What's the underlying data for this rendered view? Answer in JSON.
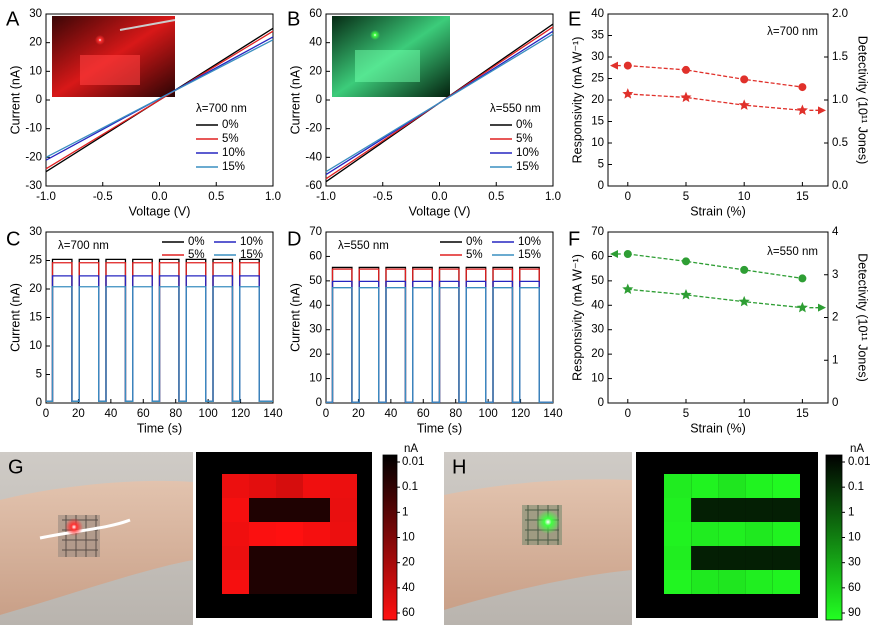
{
  "chart_data": [
    {
      "type": "line",
      "label": "A",
      "annotation": "λ=700 nm",
      "xlabel": "Voltage (V)",
      "ylabel": "Current (nA)",
      "x": [
        -1,
        1
      ],
      "xlim": [
        -1,
        1
      ],
      "xticks": [
        {
          "value": -1,
          "label": "-1.0"
        },
        -0.5,
        {
          "value": 0,
          "label": "0.0"
        },
        0.5,
        {
          "value": 1,
          "label": "1.0"
        }
      ],
      "ylim": [
        -30,
        30
      ],
      "yticks": [
        -30,
        -20,
        -10,
        0,
        10,
        20,
        30
      ],
      "legend": true,
      "series": [
        {
          "name": "0%",
          "color": "#000000",
          "values": [
            -25,
            25
          ]
        },
        {
          "name": "5%",
          "color": "#e02020",
          "values": [
            -24,
            24
          ]
        },
        {
          "name": "10%",
          "color": "#2626c0",
          "values": [
            -21,
            22
          ]
        },
        {
          "name": "15%",
          "color": "#3a8fc0",
          "values": [
            -20,
            21
          ]
        }
      ]
    },
    {
      "type": "line",
      "label": "B",
      "annotation": "λ=550 nm",
      "xlabel": "Voltage (V)",
      "ylabel": "Current (nA)",
      "x": [
        -1,
        1
      ],
      "xlim": [
        -1,
        1
      ],
      "xticks": [
        {
          "value": -1,
          "label": "-1.0"
        },
        -0.5,
        {
          "value": 0,
          "label": "0.0"
        },
        0.5,
        {
          "value": 1,
          "label": "1.0"
        }
      ],
      "ylim": [
        -60,
        60
      ],
      "yticks": [
        -60,
        -40,
        -20,
        0,
        20,
        40,
        60
      ],
      "legend": true,
      "series": [
        {
          "name": "0%",
          "color": "#000000",
          "values": [
            -57,
            53
          ]
        },
        {
          "name": "5%",
          "color": "#e02020",
          "values": [
            -55,
            51
          ]
        },
        {
          "name": "10%",
          "color": "#2626c0",
          "values": [
            -52,
            48
          ]
        },
        {
          "name": "15%",
          "color": "#3a8fc0",
          "values": [
            -50,
            46
          ]
        }
      ]
    },
    {
      "type": "line",
      "label": "C",
      "annotation": "λ=700 nm",
      "xlabel": "Time (s)",
      "ylabel": "Current (nA)",
      "x": [
        0,
        4,
        4,
        16,
        16,
        20.5,
        20.5,
        32.5,
        32.5,
        37,
        37,
        49,
        49,
        53.5,
        53.5,
        65.5,
        65.5,
        70,
        70,
        82,
        82,
        86.5,
        86.5,
        98.5,
        98.5,
        103,
        103,
        115,
        115,
        119.5,
        119.5,
        131.5,
        131.5,
        140
      ],
      "xlim": [
        0,
        140
      ],
      "xticks": [
        0,
        20,
        40,
        60,
        80,
        100,
        120,
        140
      ],
      "ylim": [
        0,
        30
      ],
      "yticks": [
        0,
        5,
        10,
        15,
        20,
        25,
        30
      ],
      "legend": true,
      "series": [
        {
          "name": "0%",
          "color": "#000000",
          "values": [
            0.3,
            0.3,
            25.2,
            25.2,
            0.3,
            0.3,
            25.2,
            25.2,
            0.3,
            0.3,
            25.2,
            25.2,
            0.3,
            0.3,
            25.2,
            25.2,
            0.3,
            0.3,
            25.2,
            25.2,
            0.3,
            0.3,
            25.2,
            25.2,
            0.3,
            0.3,
            25.2,
            25.2,
            0.3,
            0.3,
            25.2,
            25.2,
            0.3,
            0.3
          ]
        },
        {
          "name": "5%",
          "color": "#e02020",
          "values": [
            0.3,
            0.3,
            24.6,
            24.6,
            0.3,
            0.3,
            24.6,
            24.6,
            0.3,
            0.3,
            24.6,
            24.6,
            0.3,
            0.3,
            24.6,
            24.6,
            0.3,
            0.3,
            24.6,
            24.6,
            0.3,
            0.3,
            24.6,
            24.6,
            0.3,
            0.3,
            24.6,
            24.6,
            0.3,
            0.3,
            24.6,
            24.6,
            0.3,
            0.3
          ]
        },
        {
          "name": "10%",
          "color": "#2626c0",
          "values": [
            0.3,
            0.3,
            22.3,
            22.3,
            0.3,
            0.3,
            22.3,
            22.3,
            0.3,
            0.3,
            22.3,
            22.3,
            0.3,
            0.3,
            22.3,
            22.3,
            0.3,
            0.3,
            22.3,
            22.3,
            0.3,
            0.3,
            22.3,
            22.3,
            0.3,
            0.3,
            22.3,
            22.3,
            0.3,
            0.3,
            22.3,
            22.3,
            0.3,
            0.3
          ]
        },
        {
          "name": "15%",
          "color": "#3a8fc0",
          "values": [
            0.3,
            0.3,
            20.4,
            20.4,
            0.3,
            0.3,
            20.4,
            20.4,
            0.3,
            0.3,
            20.4,
            20.4,
            0.3,
            0.3,
            20.4,
            20.4,
            0.3,
            0.3,
            20.4,
            20.4,
            0.3,
            0.3,
            20.4,
            20.4,
            0.3,
            0.3,
            20.4,
            20.4,
            0.3,
            0.3,
            20.4,
            20.4,
            0.3,
            0.3
          ]
        }
      ]
    },
    {
      "type": "line",
      "label": "D",
      "annotation": "λ=550 nm",
      "xlabel": "Time (s)",
      "ylabel": "Current (nA)",
      "x": [
        0,
        4,
        4,
        16,
        16,
        20.5,
        20.5,
        32.5,
        32.5,
        37,
        37,
        49,
        49,
        53.5,
        53.5,
        65.5,
        65.5,
        70,
        70,
        82,
        82,
        86.5,
        86.5,
        98.5,
        98.5,
        103,
        103,
        115,
        115,
        119.5,
        119.5,
        131.5,
        131.5,
        140
      ],
      "xlim": [
        0,
        140
      ],
      "xticks": [
        0,
        20,
        40,
        60,
        80,
        100,
        120,
        140
      ],
      "ylim": [
        0,
        70
      ],
      "yticks": [
        0,
        10,
        20,
        30,
        40,
        50,
        60,
        70
      ],
      "legend": true,
      "series": [
        {
          "name": "0%",
          "color": "#000000",
          "values": [
            0.3,
            0.3,
            55.5,
            55.5,
            0.3,
            0.3,
            55.5,
            55.5,
            0.3,
            0.3,
            55.5,
            55.5,
            0.3,
            0.3,
            55.5,
            55.5,
            0.3,
            0.3,
            55.5,
            55.5,
            0.3,
            0.3,
            55.5,
            55.5,
            0.3,
            0.3,
            55.5,
            55.5,
            0.3,
            0.3,
            55.5,
            55.5,
            0.3,
            0.3
          ]
        },
        {
          "name": "5%",
          "color": "#e02020",
          "values": [
            0.3,
            0.3,
            54.8,
            54.8,
            0.3,
            0.3,
            54.8,
            54.8,
            0.3,
            0.3,
            54.8,
            54.8,
            0.3,
            0.3,
            54.8,
            54.8,
            0.3,
            0.3,
            54.8,
            54.8,
            0.3,
            0.3,
            54.8,
            54.8,
            0.3,
            0.3,
            54.8,
            54.8,
            0.3,
            0.3,
            54.8,
            54.8,
            0.3,
            0.3
          ]
        },
        {
          "name": "10%",
          "color": "#2626c0",
          "values": [
            0.3,
            0.3,
            49.8,
            49.8,
            0.3,
            0.3,
            49.8,
            49.8,
            0.3,
            0.3,
            49.8,
            49.8,
            0.3,
            0.3,
            49.8,
            49.8,
            0.3,
            0.3,
            49.8,
            49.8,
            0.3,
            0.3,
            49.8,
            49.8,
            0.3,
            0.3,
            49.8,
            49.8,
            0.3,
            0.3,
            49.8,
            49.8,
            0.3,
            0.3
          ]
        },
        {
          "name": "15%",
          "color": "#3a8fc0",
          "values": [
            0.3,
            0.3,
            47.2,
            47.2,
            0.3,
            0.3,
            47.2,
            47.2,
            0.3,
            0.3,
            47.2,
            47.2,
            0.3,
            0.3,
            47.2,
            47.2,
            0.3,
            0.3,
            47.2,
            47.2,
            0.3,
            0.3,
            47.2,
            47.2,
            0.3,
            0.3,
            47.2,
            47.2,
            0.3,
            0.3,
            47.2,
            47.2,
            0.3,
            0.3
          ]
        }
      ]
    },
    {
      "type": "line",
      "label": "E",
      "annotation": "λ=700 nm",
      "xlabel": "Strain (%)",
      "ylabel": "Responsivity (mA W⁻¹)",
      "y2label": "Detectivity (10¹¹ Jones)",
      "x": [
        0,
        5,
        10,
        15
      ],
      "xlim": [
        -1.7,
        17.2
      ],
      "xticks": [
        0,
        5,
        10,
        15
      ],
      "ylim": [
        0,
        40
      ],
      "yticks": [
        0,
        5,
        10,
        15,
        20,
        25,
        30,
        35,
        40
      ],
      "y2lim": [
        0,
        2
      ],
      "y2ticks": [
        {
          "value": 0,
          "label": "0.0"
        },
        0.5,
        {
          "value": 1,
          "label": "1.0"
        },
        1.5,
        {
          "value": 2,
          "label": "2.0"
        }
      ],
      "linestyle": "dashed",
      "series": [
        {
          "color": "#e0312b",
          "marker": "circle",
          "arrow": "left",
          "values": [
            28,
            27,
            24.8,
            23
          ]
        },
        {
          "color": "#e0312b",
          "marker": "star",
          "arrow": "right",
          "axis": "y2",
          "values": [
            1.07,
            1.03,
            0.94,
            0.88
          ]
        }
      ]
    },
    {
      "type": "line",
      "label": "F",
      "annotation": "λ=550 nm",
      "xlabel": "Strain (%)",
      "ylabel": "Responsivity (mA W⁻¹)",
      "y2label": "Detectivity (10¹¹ Jones)",
      "x": [
        0,
        5,
        10,
        15
      ],
      "xlim": [
        -1.7,
        17.2
      ],
      "xticks": [
        0,
        5,
        10,
        15
      ],
      "ylim": [
        0,
        70
      ],
      "yticks": [
        0,
        10,
        20,
        30,
        40,
        50,
        60,
        70
      ],
      "y2lim": [
        0,
        4
      ],
      "y2ticks": [
        0,
        1,
        2,
        3,
        4
      ],
      "linestyle": "dashed",
      "series": [
        {
          "color": "#2e9e34",
          "marker": "circle",
          "arrow": "left",
          "values": [
            61,
            58,
            54.5,
            51
          ]
        },
        {
          "color": "#2e9e34",
          "marker": "star",
          "arrow": "right",
          "axis": "y2",
          "values": [
            2.66,
            2.53,
            2.37,
            2.23
          ]
        }
      ]
    },
    {
      "type": "heatmap",
      "label": "G",
      "color": "#ff1010",
      "colorbar": {
        "unit": "nA",
        "ticks": [
          0.01,
          0.1,
          1,
          10,
          20,
          40,
          60
        ]
      },
      "values": [
        [
          50,
          45,
          38,
          52,
          50
        ],
        [
          55,
          0.01,
          0.01,
          0.01,
          48
        ],
        [
          52,
          58,
          60,
          55,
          50
        ],
        [
          50,
          0.01,
          0.01,
          0.01,
          0.01
        ],
        [
          55,
          0.01,
          0.01,
          0.01,
          0.01
        ]
      ]
    },
    {
      "type": "heatmap",
      "label": "H",
      "color": "#22ff22",
      "colorbar": {
        "unit": "nA",
        "ticks": [
          0.01,
          0.1,
          1,
          10,
          30,
          60,
          90
        ]
      },
      "values": [
        [
          75,
          80,
          70,
          80,
          85
        ],
        [
          78,
          0.01,
          0.01,
          0.01,
          0.01
        ],
        [
          80,
          75,
          78,
          72,
          80
        ],
        [
          76,
          0.01,
          0.01,
          0.01,
          0.01
        ],
        [
          82,
          72,
          70,
          76,
          80
        ]
      ]
    }
  ]
}
